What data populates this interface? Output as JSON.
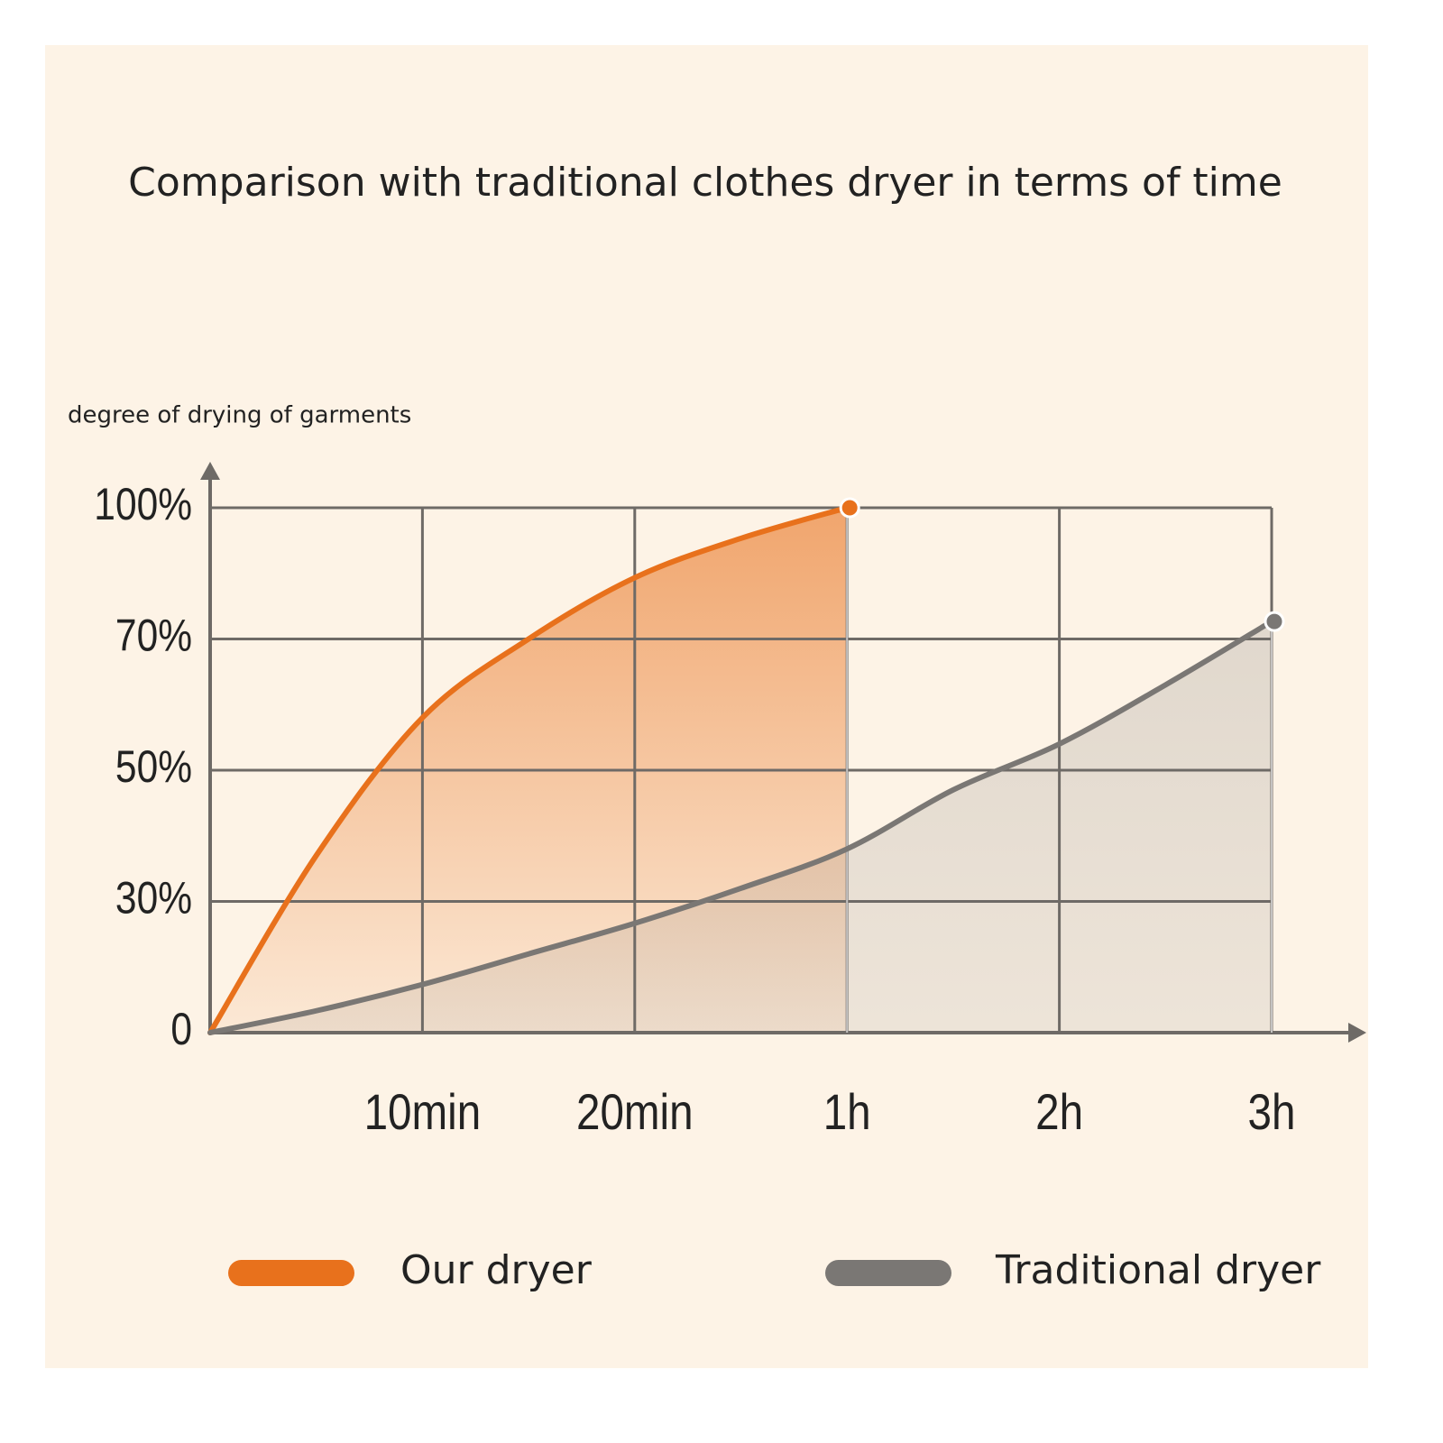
{
  "chart_data": {
    "type": "line",
    "title": "Comparison with traditional clothes dryer in terms of time",
    "ylabel": "degree of drying of garments",
    "x": [
      0,
      5,
      10,
      15,
      20,
      40,
      60,
      90,
      120,
      150,
      180
    ],
    "series": [
      {
        "name": "Our dryer",
        "color": "#e8711c",
        "values": [
          0,
          37,
          58,
          70,
          84,
          93,
          100,
          null,
          null,
          null,
          null
        ]
      },
      {
        "name": "Traditional dryer",
        "color": "#7a7774",
        "values": [
          0,
          5,
          11,
          18,
          25,
          32,
          38,
          47,
          54,
          63,
          74
        ]
      }
    ],
    "xlim": [
      0,
      180
    ],
    "xticks": [
      {
        "value": 10,
        "label": "10min"
      },
      {
        "value": 20,
        "label": "20min"
      },
      {
        "value": 60,
        "label": "1h"
      },
      {
        "value": 120,
        "label": "2h"
      },
      {
        "value": 180,
        "label": "3h"
      }
    ],
    "ylim": [
      0,
      100
    ],
    "yticks": [
      0,
      {
        "value": 30,
        "label": "30%"
      },
      {
        "value": 50,
        "label": "50%"
      },
      {
        "value": 70,
        "label": "70%"
      },
      {
        "value": 100,
        "label": "100%"
      }
    ],
    "grid": true
  }
}
